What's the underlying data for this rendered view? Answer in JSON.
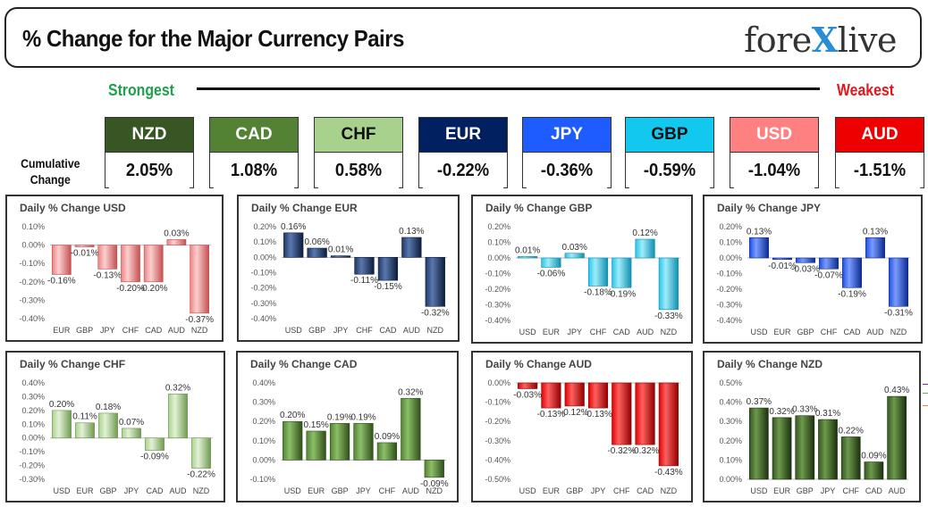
{
  "header": {
    "title": "% Change for the Major Currency Pairs",
    "logo_left": "fore",
    "logo_x": "X",
    "logo_right": "live"
  },
  "scale": {
    "strongest": "Strongest",
    "weakest": "Weakest"
  },
  "cumulative": {
    "label_line1": "Cumulative",
    "label_line2": "Change",
    "items": [
      {
        "ccy": "NZD",
        "value": "2.05%",
        "color": "#375623",
        "text_color": "#ffffff"
      },
      {
        "ccy": "CAD",
        "value": "1.08%",
        "color": "#548235",
        "text_color": "#ffffff"
      },
      {
        "ccy": "CHF",
        "value": "0.58%",
        "color": "#a9d18e",
        "text_color": "#111111"
      },
      {
        "ccy": "EUR",
        "value": "-0.22%",
        "color": "#002060",
        "text_color": "#ffffff"
      },
      {
        "ccy": "JPY",
        "value": "-0.36%",
        "color": "#1f5cff",
        "text_color": "#ffffff"
      },
      {
        "ccy": "GBP",
        "value": "-0.59%",
        "color": "#12c8ef",
        "text_color": "#111111"
      },
      {
        "ccy": "USD",
        "value": "-1.04%",
        "color": "#ff8080",
        "text_color": "#ffffff"
      },
      {
        "ccy": "AUD",
        "value": "-1.51%",
        "color": "#ee0000",
        "text_color": "#ffffff"
      }
    ]
  },
  "chart_data": [
    {
      "type": "bar",
      "title": "Daily % Change USD",
      "categories": [
        "EUR",
        "GBP",
        "JPY",
        "CHF",
        "CAD",
        "AUD",
        "NZD"
      ],
      "values": [
        -0.16,
        -0.01,
        -0.13,
        -0.2,
        -0.2,
        0.03,
        -0.37
      ],
      "labels": [
        "-0.16%",
        "-0.01%",
        "-0.13%",
        "-0.20%",
        "-0.20%",
        "0.03%",
        "-0.37%"
      ],
      "ylim": [
        -0.4,
        0.1
      ],
      "yticks": [
        "0.10%",
        "0.00%",
        "-0.10%",
        "-0.20%",
        "-0.30%",
        "-0.40%"
      ],
      "tick_values": [
        0.1,
        0.0,
        -0.1,
        -0.2,
        -0.3,
        -0.4
      ],
      "color": "#f08080",
      "color_light": "#fbd0d0",
      "color_dark": "#c55050"
    },
    {
      "type": "bar",
      "title": "Daily % Change EUR",
      "categories": [
        "USD",
        "GBP",
        "JPY",
        "CHF",
        "CAD",
        "AUD",
        "NZD"
      ],
      "values": [
        0.16,
        0.06,
        0.01,
        -0.11,
        -0.15,
        0.13,
        -0.32
      ],
      "labels": [
        "0.16%",
        "0.06%",
        "0.01%",
        "-0.11%",
        "-0.15%",
        "0.13%",
        "-0.32%"
      ],
      "ylim": [
        -0.4,
        0.2
      ],
      "yticks": [
        "0.20%",
        "0.10%",
        "0.00%",
        "-0.10%",
        "-0.20%",
        "-0.30%",
        "-0.40%"
      ],
      "tick_values": [
        0.2,
        0.1,
        0.0,
        -0.1,
        -0.2,
        -0.3,
        -0.4
      ],
      "color": "#1f3864",
      "color_light": "#5a78b0",
      "color_dark": "#0d1c3a"
    },
    {
      "type": "bar",
      "title": "Daily % Change GBP",
      "categories": [
        "USD",
        "EUR",
        "JPY",
        "CHF",
        "CAD",
        "AUD",
        "NZD"
      ],
      "values": [
        0.01,
        -0.06,
        0.03,
        -0.18,
        -0.19,
        0.12,
        -0.33
      ],
      "labels": [
        "0.01%",
        "-0.06%",
        "0.03%",
        "-0.18%",
        "-0.19%",
        "0.12%",
        "-0.33%"
      ],
      "ylim": [
        -0.4,
        0.2
      ],
      "yticks": [
        "0.20%",
        "0.10%",
        "0.00%",
        "-0.10%",
        "-0.20%",
        "-0.30%",
        "-0.40%"
      ],
      "tick_values": [
        0.2,
        0.1,
        0.0,
        -0.1,
        -0.2,
        -0.3,
        -0.4
      ],
      "color": "#25c4e8",
      "color_light": "#a0ecfb",
      "color_dark": "#118fb0"
    },
    {
      "type": "bar",
      "title": "Daily % Change JPY",
      "categories": [
        "USD",
        "EUR",
        "GBP",
        "CHF",
        "CAD",
        "AUD",
        "NZD"
      ],
      "values": [
        0.13,
        -0.01,
        -0.03,
        -0.07,
        -0.19,
        0.13,
        -0.31
      ],
      "labels": [
        "0.13%",
        "-0.01%",
        "-0.03%",
        "-0.07%",
        "-0.19%",
        "0.13%",
        "-0.31%"
      ],
      "ylim": [
        -0.4,
        0.2
      ],
      "yticks": [
        "0.20%",
        "0.10%",
        "0.00%",
        "-0.10%",
        "-0.20%",
        "-0.30%",
        "-0.40%"
      ],
      "tick_values": [
        0.2,
        0.1,
        0.0,
        -0.1,
        -0.2,
        -0.3,
        -0.4
      ],
      "color": "#1f4fe0",
      "color_light": "#7a9cff",
      "color_dark": "#0b2a90"
    },
    {
      "type": "bar",
      "title": "Daily % Change CHF",
      "categories": [
        "USD",
        "EUR",
        "GBP",
        "JPY",
        "CAD",
        "AUD",
        "NZD"
      ],
      "values": [
        0.2,
        0.11,
        0.18,
        0.07,
        -0.09,
        0.32,
        -0.22
      ],
      "labels": [
        "0.20%",
        "0.11%",
        "0.18%",
        "0.07%",
        "-0.09%",
        "0.32%",
        "-0.22%"
      ],
      "ylim": [
        -0.3,
        0.4
      ],
      "yticks": [
        "0.40%",
        "0.30%",
        "0.20%",
        "0.10%",
        "0.00%",
        "-0.10%",
        "-0.20%",
        "-0.30%"
      ],
      "tick_values": [
        0.4,
        0.3,
        0.2,
        0.1,
        0.0,
        -0.1,
        -0.2,
        -0.3
      ],
      "color": "#a9d18e",
      "color_light": "#e2f1d6",
      "color_dark": "#6f9a50"
    },
    {
      "type": "bar",
      "title": "Daily % Change CAD",
      "categories": [
        "USD",
        "EUR",
        "GBP",
        "JPY",
        "CHF",
        "AUD",
        "NZD"
      ],
      "values": [
        0.2,
        0.15,
        0.19,
        0.19,
        0.09,
        0.32,
        -0.09
      ],
      "labels": [
        "0.20%",
        "0.15%",
        "0.19%",
        "0.19%",
        "0.09%",
        "0.32%",
        "-0.09%"
      ],
      "ylim": [
        -0.1,
        0.4
      ],
      "yticks": [
        "0.40%",
        "0.30%",
        "0.20%",
        "0.10%",
        "0.00%",
        "-0.10%"
      ],
      "tick_values": [
        0.4,
        0.3,
        0.2,
        0.1,
        0.0,
        -0.1
      ],
      "color": "#548235",
      "color_light": "#8cbf68",
      "color_dark": "#2f4f1a"
    },
    {
      "type": "bar",
      "title": "Daily % Change AUD",
      "categories": [
        "USD",
        "EUR",
        "GBP",
        "JPY",
        "CHF",
        "CAD",
        "NZD"
      ],
      "values": [
        -0.03,
        -0.13,
        -0.12,
        -0.13,
        -0.32,
        -0.32,
        -0.43
      ],
      "labels": [
        "-0.03%",
        "-0.13%",
        "-0.12%",
        "-0.13%",
        "-0.32%",
        "-0.32%",
        "-0.43%"
      ],
      "ylim": [
        -0.5,
        0.0
      ],
      "yticks": [
        "0.00%",
        "-0.10%",
        "-0.20%",
        "-0.30%",
        "-0.40%",
        "-0.50%"
      ],
      "tick_values": [
        0.0,
        -0.1,
        -0.2,
        -0.3,
        -0.4,
        -0.5
      ],
      "color": "#e00000",
      "color_light": "#ff6060",
      "color_dark": "#900000"
    },
    {
      "type": "bar",
      "title": "Daily % Change NZD",
      "categories": [
        "USD",
        "EUR",
        "GBP",
        "JPY",
        "CHF",
        "CAD",
        "AUD"
      ],
      "values": [
        0.37,
        0.32,
        0.33,
        0.31,
        0.22,
        0.09,
        0.43
      ],
      "labels": [
        "0.37%",
        "0.32%",
        "0.33%",
        "0.31%",
        "0.22%",
        "0.09%",
        "0.43%"
      ],
      "ylim": [
        0.0,
        0.5
      ],
      "yticks": [
        "0.50%",
        "0.40%",
        "0.30%",
        "0.20%",
        "0.10%",
        "0.00%"
      ],
      "tick_values": [
        0.5,
        0.4,
        0.3,
        0.2,
        0.1,
        0.0
      ],
      "color": "#375623",
      "color_light": "#6c9a4c",
      "color_dark": "#1c3010"
    }
  ]
}
